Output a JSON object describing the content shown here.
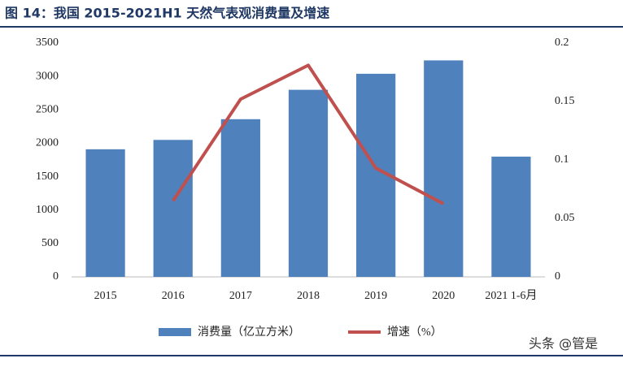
{
  "title": "图 14：我国 2015-2021H1 天然气表观消费量及增速",
  "watermark": "头条 @管是",
  "chart_data": {
    "type": "bar-line",
    "categories": [
      "2015",
      "2016",
      "2017",
      "2018",
      "2019",
      "2020",
      "2021 1-6月"
    ],
    "series": [
      {
        "name": "消费量（亿立方米）",
        "type": "bar",
        "color": "#4f81bd",
        "values": [
          1910,
          2050,
          2360,
          2800,
          3040,
          3240,
          1800
        ]
      },
      {
        "name": "增速（%）",
        "type": "line",
        "axis": "y2",
        "color": "#c0504d",
        "values": [
          null,
          0.065,
          0.152,
          0.181,
          0.093,
          0.0625,
          null
        ]
      }
    ],
    "ylim": [
      0,
      3500
    ],
    "yticks": [
      0,
      500,
      1000,
      1500,
      2000,
      2500,
      3000,
      3500
    ],
    "y2lim": [
      0,
      0.2
    ],
    "y2ticks": [
      0,
      0.05,
      0.1,
      0.15,
      0.2
    ],
    "legend": "bottom"
  }
}
